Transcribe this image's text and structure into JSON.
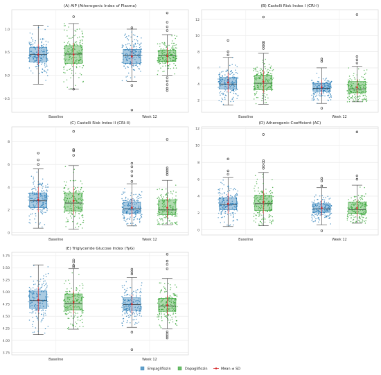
{
  "legend": {
    "placement": "bottom-center",
    "entries": [
      {
        "name": "Empagliflozin",
        "color": "#1f77b4"
      },
      {
        "name": "Dapagliflozin",
        "color": "#2ca02c"
      },
      {
        "name": "Mean ± SD",
        "color": "#d62728"
      }
    ]
  },
  "chart_data": [
    {
      "type": "box",
      "title": "(A) AIP (Atherogenic Index of Plasma)",
      "categories": [
        "Baseline",
        "Week 12"
      ],
      "ylim": [
        -0.8,
        1.42
      ],
      "yticks": [
        -0.5,
        0.0,
        0.5,
        1.0
      ],
      "ytick_labels": [
        "-0.5",
        "0.0",
        "0.5",
        "1.0"
      ],
      "grid": true,
      "series": [
        {
          "name": "Empagliflozin",
          "color": "#1f77b4",
          "boxes": [
            {
              "whislo": -0.19,
              "q1": 0.29,
              "med": 0.45,
              "q3": 0.6,
              "whishi": 1.08,
              "mean": 0.45,
              "sd": 0.22,
              "fliers": []
            },
            {
              "whislo": -0.13,
              "q1": 0.26,
              "med": 0.43,
              "q3": 0.56,
              "whishi": 1.0,
              "mean": 0.41,
              "sd": 0.2,
              "fliers": [
                -0.22,
                1.03,
                -0.75
              ]
            }
          ]
        },
        {
          "name": "Dapagliflozin",
          "color": "#2ca02c",
          "boxes": [
            {
              "whislo": -0.3,
              "q1": 0.26,
              "med": 0.46,
              "q3": 0.64,
              "whishi": 1.12,
              "mean": 0.45,
              "sd": 0.25,
              "fliers": [
                1.27,
                -0.3
              ]
            },
            {
              "whislo": 0.0,
              "q1": 0.3,
              "med": 0.42,
              "q3": 0.54,
              "whishi": 0.88,
              "mean": 0.42,
              "sd": 0.18,
              "fliers": [
                1.35,
                1.15,
                1.05,
                0.97,
                -0.05,
                -0.12,
                -0.2,
                -0.28,
                -0.33
              ]
            }
          ]
        }
      ]
    },
    {
      "type": "box",
      "title": "(B) Castelli Risk Index I (CRI-I)",
      "categories": [
        "Baseline",
        "Week 12"
      ],
      "ylim": [
        0.5,
        13.2
      ],
      "yticks": [
        2,
        4,
        6,
        8,
        10,
        12
      ],
      "ytick_labels": [
        "2",
        "4",
        "6",
        "8",
        "10",
        "12"
      ],
      "grid": true,
      "series": [
        {
          "name": "Empagliflozin",
          "color": "#1f77b4",
          "boxes": [
            {
              "whislo": 1.4,
              "q1": 3.4,
              "med": 4.0,
              "q3": 4.8,
              "whishi": 7.3,
              "mean": 4.2,
              "sd": 1.2,
              "fliers": [
                9.4,
                8.0,
                7.6
              ]
            },
            {
              "whislo": 1.6,
              "q1": 3.1,
              "med": 3.45,
              "q3": 4.1,
              "whishi": 6.0,
              "mean": 3.6,
              "sd": 0.9,
              "fliers": [
                7.1,
                6.8,
                1.0
              ]
            }
          ]
        },
        {
          "name": "Dapagliflozin",
          "color": "#2ca02c",
          "boxes": [
            {
              "whislo": 1.5,
              "q1": 3.3,
              "med": 4.1,
              "q3": 5.1,
              "whishi": 7.8,
              "mean": 4.3,
              "sd": 1.4,
              "fliers": [
                12.3,
                9.2,
                9.0,
                8.7,
                8.4
              ]
            },
            {
              "whislo": 1.8,
              "q1": 2.9,
              "med": 3.4,
              "q3": 4.3,
              "whishi": 6.2,
              "mean": 3.6,
              "sd": 1.0,
              "fliers": [
                12.6,
                7.4,
                7.0,
                6.6
              ]
            }
          ]
        }
      ]
    },
    {
      "type": "box",
      "title": "(C) Castelli Risk Index II (CRI-II)",
      "categories": [
        "Baseline",
        "Week 12"
      ],
      "ylim": [
        -0.2,
        9.3
      ],
      "yticks": [
        0,
        2,
        4,
        6,
        8
      ],
      "ytick_labels": [
        "0",
        "2",
        "4",
        "6",
        "8"
      ],
      "grid": true,
      "series": [
        {
          "name": "Empagliflozin",
          "color": "#1f77b4",
          "boxes": [
            {
              "whislo": 0.4,
              "q1": 2.2,
              "med": 2.8,
              "q3": 3.5,
              "whishi": 5.6,
              "mean": 2.9,
              "sd": 1.1,
              "fliers": [
                7.0,
                6.4,
                6.0
              ]
            },
            {
              "whislo": 0.6,
              "q1": 1.7,
              "med": 2.1,
              "q3": 2.7,
              "whishi": 4.3,
              "mean": 2.2,
              "sd": 0.8,
              "fliers": [
                6.1,
                5.8,
                5.4,
                5.0,
                4.5
              ]
            }
          ]
        },
        {
          "name": "Dapagliflozin",
          "color": "#2ca02c",
          "boxes": [
            {
              "whislo": 0.3,
              "q1": 1.9,
              "med": 2.6,
              "q3": 3.5,
              "whishi": 5.9,
              "mean": 2.8,
              "sd": 1.2,
              "fliers": [
                8.9,
                7.3,
                7.2,
                6.8
              ]
            },
            {
              "whislo": 0.7,
              "q1": 1.6,
              "med": 2.0,
              "q3": 2.9,
              "whishi": 4.6,
              "mean": 2.2,
              "sd": 0.9,
              "fliers": [
                8.2,
                5.7,
                5.5,
                5.3,
                5.1
              ]
            }
          ]
        }
      ]
    },
    {
      "type": "box",
      "title": "(D) Atherogenic Coefficient (AC)",
      "categories": [
        "Baseline",
        "Week 12"
      ],
      "ylim": [
        -0.6,
        12.2
      ],
      "yticks": [
        0,
        2,
        4,
        6,
        8,
        10,
        12
      ],
      "ytick_labels": [
        "0",
        "2",
        "4",
        "6",
        "8",
        "10",
        "12"
      ],
      "grid": true,
      "series": [
        {
          "name": "Empagliflozin",
          "color": "#1f77b4",
          "boxes": [
            {
              "whislo": 0.4,
              "q1": 2.4,
              "med": 3.0,
              "q3": 3.8,
              "whishi": 6.2,
              "mean": 3.1,
              "sd": 1.2,
              "fliers": [
                8.4,
                7.0,
                6.6
              ]
            },
            {
              "whislo": 0.6,
              "q1": 2.1,
              "med": 2.5,
              "q3": 3.1,
              "whishi": 5.0,
              "mean": 2.6,
              "sd": 0.9,
              "fliers": [
                6.1,
                5.8,
                5.2,
                -0.1
              ]
            }
          ]
        },
        {
          "name": "Dapagliflozin",
          "color": "#2ca02c",
          "boxes": [
            {
              "whislo": 0.5,
              "q1": 2.3,
              "med": 3.1,
              "q3": 4.1,
              "whishi": 6.8,
              "mean": 3.3,
              "sd": 1.4,
              "fliers": [
                11.3,
                8.2,
                8.0,
                7.6,
                7.3
              ]
            },
            {
              "whislo": 0.8,
              "q1": 1.9,
              "med": 2.4,
              "q3": 3.3,
              "whishi": 5.3,
              "mean": 2.6,
              "sd": 1.0,
              "fliers": [
                11.6,
                6.4,
                6.0
              ]
            }
          ]
        }
      ]
    },
    {
      "type": "box",
      "title": "(E) Triglyceride Glucose Index (TyG)",
      "categories": [
        "Baseline",
        "Week 12"
      ],
      "ylim": [
        3.7,
        5.82
      ],
      "yticks": [
        3.75,
        4.0,
        4.25,
        4.5,
        4.75,
        5.0,
        5.25,
        5.5,
        5.75
      ],
      "ytick_labels": [
        "3.75",
        "4.00",
        "4.25",
        "4.50",
        "4.75",
        "5.00",
        "5.25",
        "5.50",
        "5.75"
      ],
      "grid": true,
      "series": [
        {
          "name": "Empagliflozin",
          "color": "#1f77b4",
          "boxes": [
            {
              "whislo": 4.12,
              "q1": 4.66,
              "med": 4.82,
              "q3": 5.02,
              "whishi": 5.56,
              "mean": 4.84,
              "sd": 0.26,
              "fliers": []
            },
            {
              "whislo": 4.27,
              "q1": 4.62,
              "med": 4.74,
              "q3": 4.88,
              "whishi": 5.3,
              "mean": 4.75,
              "sd": 0.2,
              "fliers": [
                5.47,
                5.42,
                5.37,
                4.17,
                3.81
              ]
            }
          ]
        },
        {
          "name": "Dapagliflozin",
          "color": "#2ca02c",
          "boxes": [
            {
              "whislo": 4.23,
              "q1": 4.63,
              "med": 4.76,
              "q3": 4.96,
              "whishi": 5.48,
              "mean": 4.79,
              "sd": 0.24,
              "fliers": [
                5.66,
                5.62,
                5.55,
                5.52
              ]
            },
            {
              "whislo": 4.24,
              "q1": 4.6,
              "med": 4.71,
              "q3": 4.87,
              "whishi": 5.28,
              "mean": 4.73,
              "sd": 0.2,
              "fliers": [
                5.78,
                5.64,
                5.57,
                5.48,
                4.18,
                4.13,
                4.09,
                4.05
              ]
            }
          ]
        }
      ]
    }
  ]
}
